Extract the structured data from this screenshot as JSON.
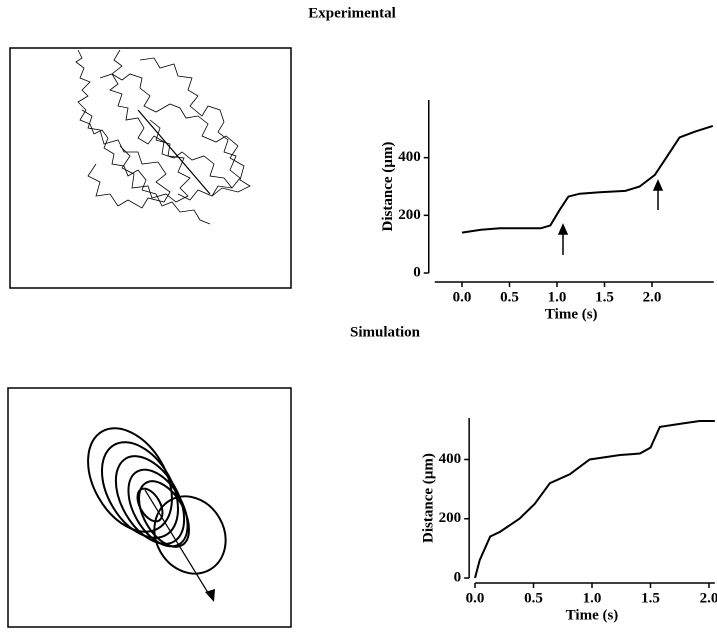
{
  "chart_data": [
    {
      "type": "line",
      "title": "Experimental",
      "x_label": "Time (s)",
      "y_label": "Distance (µm)",
      "color": "#000000",
      "x": [
        0.0,
        0.2,
        0.4,
        0.83,
        0.93,
        1.03,
        1.12,
        1.24,
        1.45,
        1.72,
        1.87,
        2.03,
        2.17,
        2.29,
        2.45,
        2.64
      ],
      "values": [
        140,
        150,
        155,
        155,
        165,
        220,
        265,
        275,
        280,
        285,
        300,
        340,
        410,
        470,
        490,
        510
      ],
      "xlim": [
        -0.35,
        2.65
      ],
      "ylim": [
        0,
        600
      ],
      "xticks": [
        {
          "value": 0,
          "label": "0.0"
        },
        0.5,
        {
          "value": 1,
          "label": "1.0"
        },
        1.5,
        {
          "value": 2,
          "label": "2.0"
        }
      ],
      "yticks": [
        0,
        200,
        400
      ]
    },
    {
      "type": "line",
      "title": "Simulation",
      "x_label": "Time (s)",
      "y_label": "Distance (µm)",
      "color": "#000000",
      "x": [
        0.0,
        0.04,
        0.13,
        0.21,
        0.38,
        0.51,
        0.64,
        0.81,
        0.98,
        1.24,
        1.41,
        1.5,
        1.58,
        1.75,
        1.92,
        2.05
      ],
      "values": [
        0,
        60,
        140,
        155,
        200,
        250,
        320,
        350,
        400,
        415,
        420,
        440,
        510,
        520,
        530,
        530
      ],
      "xlim": [
        -0.05,
        2.05
      ],
      "ylim": [
        0,
        540
      ],
      "xticks": [
        {
          "value": 0,
          "label": "0.0"
        },
        0.5,
        {
          "value": 1,
          "label": "1.0"
        },
        1.5,
        {
          "value": 2,
          "label": "2.0"
        }
      ],
      "yticks": [
        0,
        200,
        400
      ]
    }
  ]
}
